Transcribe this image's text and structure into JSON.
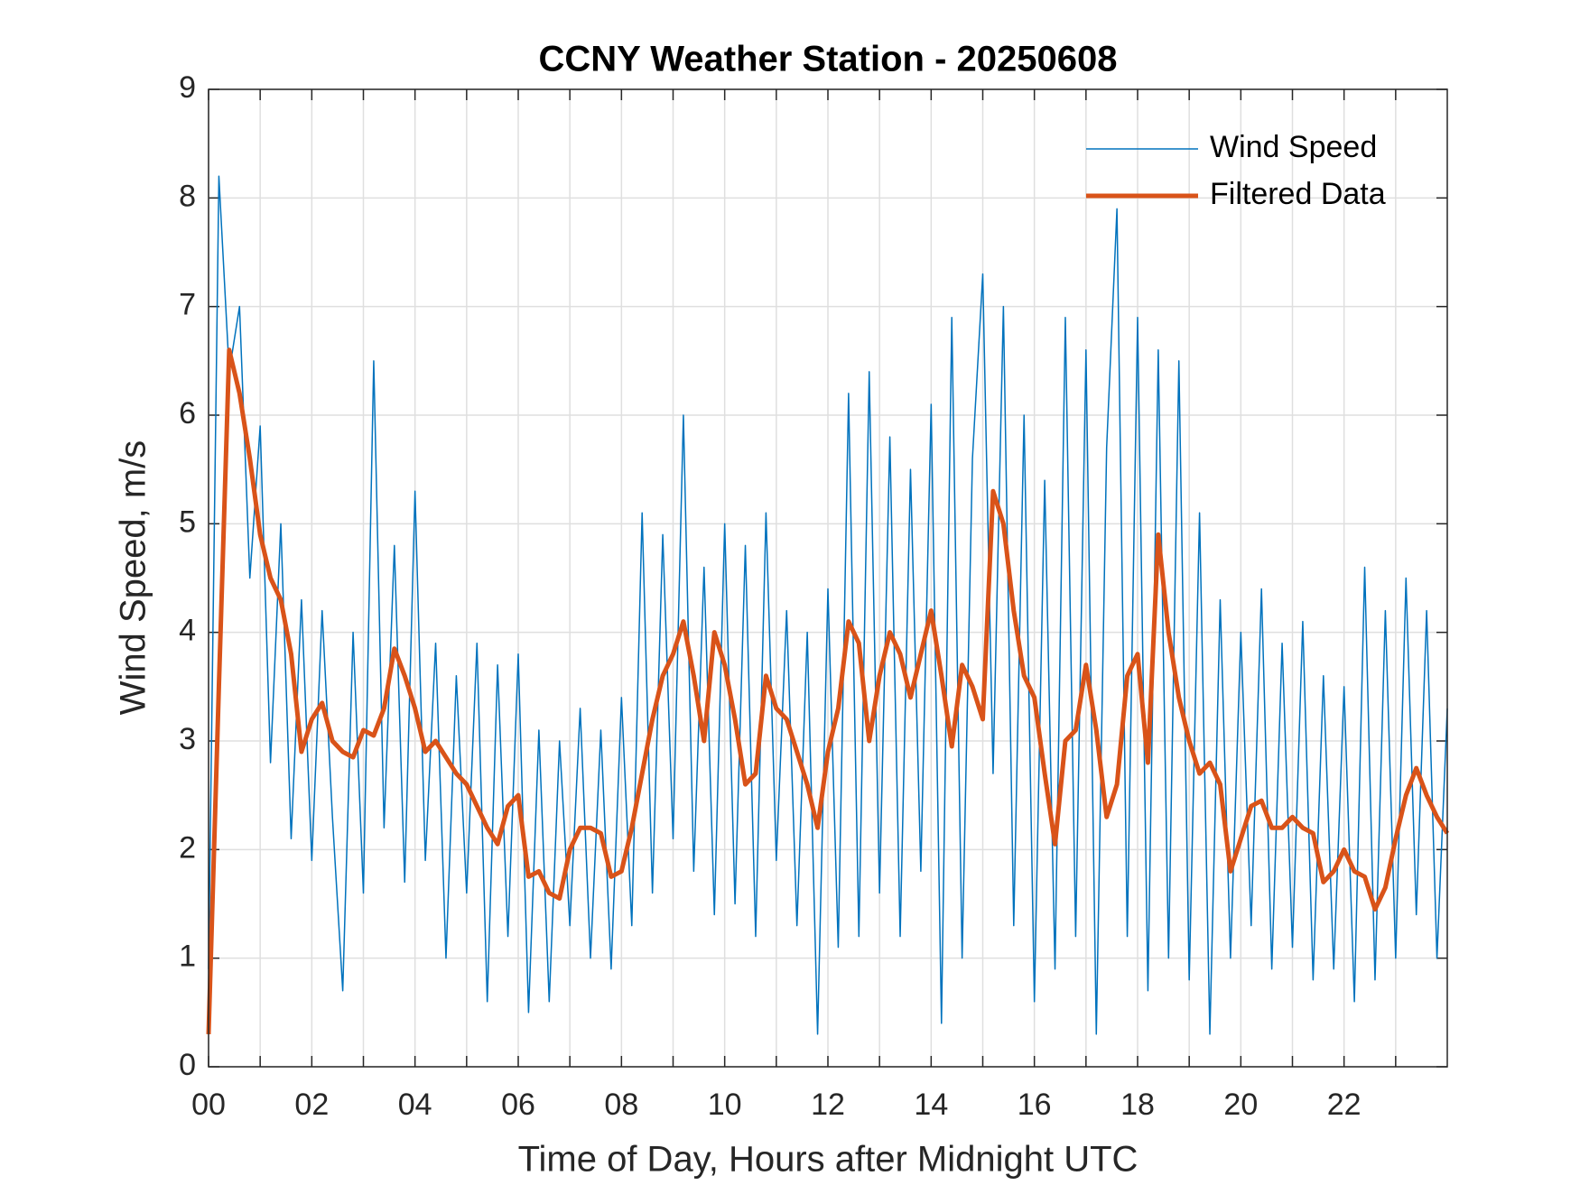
{
  "chart_data": {
    "type": "line",
    "title": "CCNY Weather Station - 20250608",
    "xlabel": "Time of Day, Hours after Midnight UTC",
    "ylabel": "Wind Speed, m/s",
    "x": [
      0,
      0.2,
      0.4,
      0.6,
      0.8,
      1,
      1.2,
      1.4,
      1.6,
      1.8,
      2,
      2.2,
      2.4,
      2.6,
      2.8,
      3,
      3.2,
      3.4,
      3.6,
      3.8,
      4,
      4.2,
      4.4,
      4.6,
      4.8,
      5,
      5.2,
      5.4,
      5.6,
      5.8,
      6,
      6.2,
      6.4,
      6.6,
      6.8,
      7,
      7.2,
      7.4,
      7.6,
      7.8,
      8,
      8.2,
      8.4,
      8.6,
      8.8,
      9,
      9.2,
      9.4,
      9.6,
      9.8,
      10,
      10.2,
      10.4,
      10.6,
      10.8,
      11,
      11.2,
      11.4,
      11.6,
      11.8,
      12,
      12.2,
      12.4,
      12.6,
      12.8,
      13,
      13.2,
      13.4,
      13.6,
      13.8,
      14,
      14.2,
      14.4,
      14.6,
      14.8,
      15,
      15.2,
      15.4,
      15.6,
      15.8,
      16,
      16.2,
      16.4,
      16.6,
      16.8,
      17,
      17.2,
      17.4,
      17.6,
      17.8,
      18,
      18.2,
      18.4,
      18.6,
      18.8,
      19,
      19.2,
      19.4,
      19.6,
      19.8,
      20,
      20.2,
      20.4,
      20.6,
      20.8,
      21,
      21.2,
      21.4,
      21.6,
      21.8,
      22,
      22.2,
      22.4,
      22.6,
      22.8,
      23,
      23.2,
      23.4,
      23.6,
      23.8,
      24
    ],
    "series": [
      {
        "name": "Wind Speed",
        "color": "#0072BD",
        "width": 1.5,
        "values": [
          0.9,
          8.2,
          6.4,
          7.0,
          4.5,
          5.9,
          2.8,
          5.0,
          2.1,
          4.3,
          1.9,
          4.2,
          2.3,
          0.7,
          4.0,
          1.6,
          6.5,
          2.2,
          4.8,
          1.7,
          5.3,
          1.9,
          3.9,
          1.0,
          3.6,
          1.6,
          3.9,
          0.6,
          3.7,
          1.2,
          3.8,
          0.5,
          3.1,
          0.6,
          3.0,
          1.3,
          3.3,
          1.0,
          3.1,
          0.9,
          3.4,
          1.3,
          5.1,
          1.6,
          4.9,
          2.1,
          6.0,
          1.8,
          4.6,
          1.4,
          5.0,
          1.5,
          4.8,
          1.2,
          5.1,
          1.9,
          4.2,
          1.3,
          4.0,
          0.3,
          4.4,
          1.1,
          6.2,
          1.2,
          6.4,
          1.6,
          5.8,
          1.2,
          5.5,
          1.8,
          6.1,
          0.4,
          6.9,
          1.0,
          5.6,
          7.3,
          2.7,
          7.0,
          1.3,
          6.0,
          0.6,
          5.4,
          0.9,
          6.9,
          1.2,
          6.6,
          0.3,
          5.7,
          7.9,
          1.2,
          6.9,
          0.7,
          6.6,
          1.0,
          6.5,
          0.8,
          5.1,
          0.3,
          4.3,
          1.0,
          4.0,
          1.3,
          4.4,
          0.9,
          3.9,
          1.1,
          4.1,
          0.8,
          3.6,
          0.9,
          3.5,
          0.6,
          4.6,
          0.8,
          4.2,
          1.0,
          4.5,
          1.4,
          4.2,
          1.0,
          3.3
        ]
      },
      {
        "name": "Filtered Data",
        "color": "#D95319",
        "width": 5,
        "values": [
          0.3,
          3.5,
          6.6,
          6.2,
          5.6,
          4.9,
          4.5,
          4.3,
          3.8,
          2.9,
          3.2,
          3.35,
          3.0,
          2.9,
          2.85,
          3.1,
          3.05,
          3.3,
          3.85,
          3.6,
          3.3,
          2.9,
          3.0,
          2.85,
          2.7,
          2.6,
          2.4,
          2.2,
          2.05,
          2.4,
          2.5,
          1.75,
          1.8,
          1.6,
          1.55,
          2.0,
          2.2,
          2.2,
          2.15,
          1.75,
          1.8,
          2.2,
          2.7,
          3.2,
          3.6,
          3.8,
          4.1,
          3.6,
          3.0,
          4.0,
          3.7,
          3.2,
          2.6,
          2.7,
          3.6,
          3.3,
          3.2,
          2.9,
          2.6,
          2.2,
          2.9,
          3.3,
          4.1,
          3.9,
          3.0,
          3.6,
          4.0,
          3.8,
          3.4,
          3.8,
          4.2,
          3.6,
          2.95,
          3.7,
          3.5,
          3.2,
          5.3,
          5.0,
          4.2,
          3.6,
          3.4,
          2.7,
          2.05,
          3.0,
          3.1,
          3.7,
          3.1,
          2.3,
          2.6,
          3.6,
          3.8,
          2.8,
          4.9,
          4.0,
          3.4,
          3.0,
          2.7,
          2.8,
          2.6,
          1.8,
          2.1,
          2.4,
          2.45,
          2.2,
          2.2,
          2.3,
          2.2,
          2.15,
          1.7,
          1.8,
          2.0,
          1.8,
          1.75,
          1.45,
          1.65,
          2.1,
          2.5,
          2.75,
          2.5,
          2.3,
          2.15
        ]
      }
    ],
    "xlim": [
      0,
      24
    ],
    "xticks": [
      {
        "value": 0,
        "label": "00"
      },
      {
        "value": 2,
        "label": "02"
      },
      {
        "value": 4,
        "label": "04"
      },
      {
        "value": 6,
        "label": "06"
      },
      {
        "value": 8,
        "label": "08"
      },
      {
        "value": 10,
        "label": "10"
      },
      {
        "value": 12,
        "label": "12"
      },
      {
        "value": 14,
        "label": "14"
      },
      {
        "value": 16,
        "label": "16"
      },
      {
        "value": 18,
        "label": "18"
      },
      {
        "value": 20,
        "label": "20"
      },
      {
        "value": 22,
        "label": "22"
      }
    ],
    "xminorticks": [
      1,
      3,
      5,
      7,
      9,
      11,
      13,
      15,
      17,
      19,
      21,
      23
    ],
    "ylim": [
      0,
      9
    ],
    "yticks": [
      0,
      1,
      2,
      3,
      4,
      5,
      6,
      7,
      8,
      9
    ],
    "grid": true,
    "legend": "top-right"
  }
}
